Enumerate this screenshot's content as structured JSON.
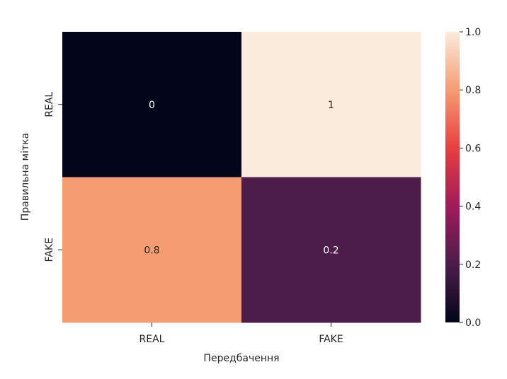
{
  "chart_data": {
    "type": "heatmap",
    "title": "",
    "xlabel": "Передбачення",
    "ylabel": "Правильна мітка",
    "x_categories": [
      "REAL",
      "FAKE"
    ],
    "y_categories": [
      "REAL",
      "FAKE"
    ],
    "values": [
      [
        0,
        1
      ],
      [
        0.8,
        0.2
      ]
    ],
    "cell_labels": [
      [
        "0",
        "1"
      ],
      [
        "0.8",
        "0.2"
      ]
    ],
    "colorbar": {
      "range": [
        0.0,
        1.0
      ],
      "ticks": [
        0.0,
        0.2,
        0.4,
        0.6,
        0.8,
        1.0
      ],
      "tick_labels": [
        "0.0",
        "0.2",
        "0.4",
        "0.6",
        "0.8",
        "1.0"
      ]
    },
    "colormap": "rocket",
    "colormap_stops": [
      "#03051a",
      "#4c1d4b",
      "#a11a5b",
      "#e83f3f",
      "#f69c73",
      "#faebdd"
    ]
  }
}
